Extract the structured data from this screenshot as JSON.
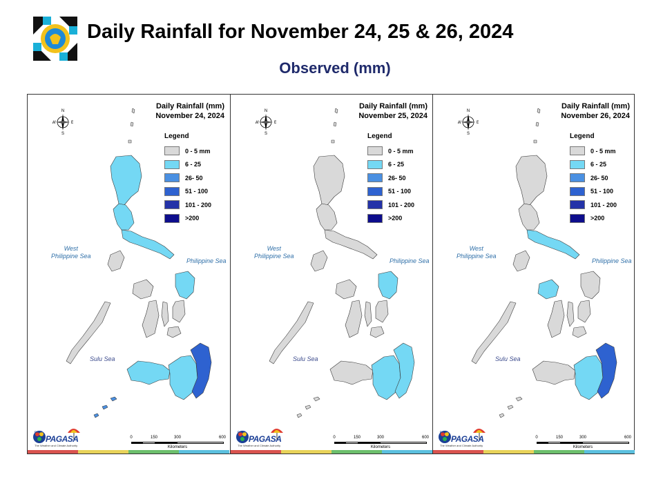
{
  "header": {
    "title": "Daily Rainfall for November 24, 25 & 26, 2024",
    "subtitle": "Observed (mm)"
  },
  "legend": {
    "title": "Legend",
    "items": [
      {
        "label": "0 - 5 mm",
        "color": "#d9d9d9"
      },
      {
        "label": "6 - 25",
        "color": "#74d8f4"
      },
      {
        "label": "26- 50",
        "color": "#4a90e2"
      },
      {
        "label": "51 - 100",
        "color": "#2e62d0"
      },
      {
        "label": "101 - 200",
        "color": "#2433a8"
      },
      {
        "label": ">200",
        "color": "#0d0d8c"
      }
    ]
  },
  "map_labels": {
    "west_sea": [
      "West",
      "Philippine Sea"
    ],
    "east_sea": "Philippine Sea",
    "sulu_sea": "Sulu Sea",
    "compass": {
      "n": "N",
      "s": "S",
      "e": "E",
      "w": "W"
    }
  },
  "scale": {
    "ticks": [
      "0",
      "150",
      "300",
      "600"
    ],
    "unit": "Kilometers"
  },
  "branding": {
    "agency": "PAGASA",
    "dost": "DOST",
    "tagline": "The Weather and Climate Authority"
  },
  "stripe_colors": [
    "#d9534f",
    "#e8d35a",
    "#6cbf6c",
    "#5bc0de"
  ],
  "panels": [
    {
      "title_line1": "Daily Rainfall (mm)",
      "title_line2": "November 24, 2024",
      "rain": {
        "north_luzon": "#74d8f4",
        "central_luzon": "#74d8f4",
        "bicol": "#74d8f4",
        "samar": "#74d8f4",
        "panay": "#d9d9d9",
        "negros": "#d9d9d9",
        "mindanao_west": "#74d8f4",
        "mindanao_center": "#74d8f4",
        "mindanao_east": "#2e62d0",
        "sulu": "#4a90e2"
      }
    },
    {
      "title_line1": "Daily Rainfall (mm)",
      "title_line2": "November 25, 2024",
      "rain": {
        "north_luzon": "#d9d9d9",
        "central_luzon": "#d9d9d9",
        "bicol": "#d9d9d9",
        "samar": "#74d8f4",
        "panay": "#d9d9d9",
        "negros": "#d9d9d9",
        "mindanao_west": "#d9d9d9",
        "mindanao_center": "#74d8f4",
        "mindanao_east": "#74d8f4",
        "sulu": "#d9d9d9"
      }
    },
    {
      "title_line1": "Daily Rainfall (mm)",
      "title_line2": "November 26, 2024",
      "rain": {
        "north_luzon": "#d9d9d9",
        "central_luzon": "#d9d9d9",
        "bicol": "#74d8f4",
        "samar": "#d9d9d9",
        "panay": "#74d8f4",
        "negros": "#d9d9d9",
        "mindanao_west": "#d9d9d9",
        "mindanao_center": "#74d8f4",
        "mindanao_east": "#2e62d0",
        "sulu": "#d9d9d9"
      }
    }
  ]
}
